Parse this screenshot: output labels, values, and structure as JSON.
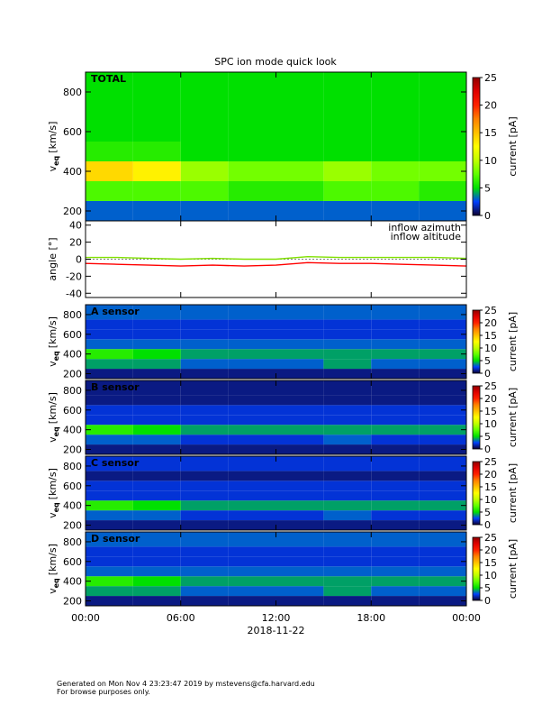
{
  "title": "SPC ion mode quick look",
  "footer": [
    "Generated on Mon Nov  4 23:23:47 2019 by mstevens@cfa.harvard.edu",
    "For browse purposes only."
  ],
  "chart_data": [
    {
      "type": "heatmap",
      "label": "TOTAL",
      "ylabel": {
        "main": "v",
        "sub": "eq",
        "unit": "[km/s]"
      },
      "xbins": [
        0,
        3,
        6,
        9,
        12,
        15,
        18,
        21,
        24
      ],
      "ybins": [
        150,
        250,
        350,
        450,
        550,
        650,
        750,
        900
      ],
      "z": [
        [
          3,
          3,
          3,
          3,
          3,
          3,
          3,
          3
        ],
        [
          7,
          7,
          7,
          6,
          6,
          7,
          7,
          6
        ],
        [
          14,
          13,
          9,
          8,
          8,
          9,
          8,
          8
        ],
        [
          6,
          6,
          5,
          5,
          5,
          5,
          5,
          5
        ],
        [
          5,
          5,
          5,
          5,
          5,
          5,
          5,
          5
        ],
        [
          5,
          5,
          5,
          5,
          5,
          5,
          5,
          5
        ],
        [
          5,
          5,
          5,
          5,
          5,
          5,
          5,
          5
        ]
      ],
      "xlim": [
        0,
        24
      ],
      "ylim": [
        150,
        900
      ],
      "yticks": [
        200,
        400,
        600,
        800
      ],
      "clim": [
        0,
        25
      ],
      "cticks": [
        0,
        5,
        10,
        15,
        20,
        25
      ],
      "clabel": "current [pA]",
      "colormap": [
        "#100030",
        "#0040ff",
        "#00e000",
        "#60ff00",
        "#c0ff00",
        "#ffff00",
        "#ffc000",
        "#ff8000",
        "#ff2000",
        "#e00000",
        "#900000"
      ]
    },
    {
      "type": "line",
      "ylabel": "angle [°]",
      "x": [
        0,
        2,
        4,
        6,
        8,
        10,
        12,
        14,
        16,
        18,
        20,
        22,
        24
      ],
      "xlim": [
        0,
        24
      ],
      "ylim": [
        -45,
        45
      ],
      "yticks": [
        -40,
        -20,
        0,
        20,
        40
      ],
      "series": [
        {
          "name": "inflow azimuth",
          "color": "#ff0000",
          "values": [
            -5,
            -6,
            -7,
            -8,
            -7,
            -8,
            -7,
            -4,
            -5,
            -5,
            -6,
            -7,
            -8
          ]
        },
        {
          "name": "inflow altitude",
          "color": "#80e000",
          "values": [
            2,
            2,
            1,
            0,
            1,
            0,
            0,
            3,
            2,
            2,
            2,
            2,
            1
          ]
        }
      ]
    },
    {
      "type": "heatmap",
      "label": "A sensor",
      "ylabel": {
        "main": "v",
        "sub": "eq",
        "unit": "[km/s]"
      },
      "xbins": [
        0,
        3,
        6,
        9,
        12,
        15,
        18,
        21,
        24
      ],
      "ybins": [
        150,
        250,
        350,
        450,
        550,
        650,
        750,
        900
      ],
      "z": [
        [
          1,
          1,
          1,
          1,
          1,
          1,
          1,
          1
        ],
        [
          4,
          4,
          3,
          3,
          3,
          4,
          3,
          3
        ],
        [
          6,
          5,
          4,
          4,
          4,
          4,
          4,
          4
        ],
        [
          3,
          3,
          3,
          3,
          3,
          3,
          3,
          3
        ],
        [
          2,
          2,
          2,
          2,
          2,
          2,
          2,
          2
        ],
        [
          2,
          2,
          2,
          2,
          2,
          2,
          2,
          2
        ],
        [
          3,
          3,
          3,
          3,
          3,
          3,
          3,
          3
        ]
      ],
      "xlim": [
        0,
        24
      ],
      "ylim": [
        150,
        900
      ],
      "yticks": [
        200,
        400,
        600,
        800
      ],
      "clim": [
        0,
        25
      ],
      "cticks": [
        0,
        5,
        10,
        15,
        20,
        25
      ],
      "clabel": "current [pA]",
      "colormap": [
        "#100030",
        "#0040ff",
        "#00e000",
        "#60ff00",
        "#c0ff00",
        "#ffff00",
        "#ffc000",
        "#ff8000",
        "#ff2000",
        "#e00000",
        "#900000"
      ]
    },
    {
      "type": "heatmap",
      "label": "B sensor",
      "ylabel": {
        "main": "v",
        "sub": "eq",
        "unit": "[km/s]"
      },
      "xbins": [
        0,
        3,
        6,
        9,
        12,
        15,
        18,
        21,
        24
      ],
      "ybins": [
        150,
        250,
        350,
        450,
        550,
        650,
        750,
        900
      ],
      "z": [
        [
          1,
          1,
          1,
          1,
          1,
          1,
          1,
          1
        ],
        [
          3,
          3,
          2,
          2,
          2,
          3,
          2,
          2
        ],
        [
          6,
          5,
          4,
          4,
          4,
          4,
          4,
          4
        ],
        [
          2,
          2,
          2,
          2,
          2,
          2,
          2,
          2
        ],
        [
          2,
          2,
          2,
          2,
          2,
          2,
          2,
          2
        ],
        [
          1,
          1,
          1,
          1,
          1,
          1,
          1,
          1
        ],
        [
          1,
          1,
          1,
          1,
          1,
          1,
          1,
          1
        ]
      ],
      "xlim": [
        0,
        24
      ],
      "ylim": [
        150,
        900
      ],
      "yticks": [
        200,
        400,
        600,
        800
      ],
      "clim": [
        0,
        25
      ],
      "cticks": [
        0,
        5,
        10,
        15,
        20,
        25
      ],
      "clabel": "current [pA]",
      "colormap": [
        "#100030",
        "#0040ff",
        "#00e000",
        "#60ff00",
        "#c0ff00",
        "#ffff00",
        "#ffc000",
        "#ff8000",
        "#ff2000",
        "#e00000",
        "#900000"
      ]
    },
    {
      "type": "heatmap",
      "label": "C sensor",
      "ylabel": {
        "main": "v",
        "sub": "eq",
        "unit": "[km/s]"
      },
      "xbins": [
        0,
        3,
        6,
        9,
        12,
        15,
        18,
        21,
        24
      ],
      "ybins": [
        150,
        250,
        350,
        450,
        550,
        650,
        750,
        900
      ],
      "z": [
        [
          1,
          1,
          1,
          1,
          1,
          1,
          1,
          1
        ],
        [
          3,
          3,
          2,
          2,
          2,
          3,
          2,
          2
        ],
        [
          6,
          5,
          4,
          4,
          4,
          4,
          4,
          4
        ],
        [
          2,
          2,
          2,
          2,
          2,
          2,
          2,
          2
        ],
        [
          2,
          2,
          2,
          2,
          2,
          2,
          2,
          2
        ],
        [
          1,
          1,
          1,
          1,
          1,
          1,
          1,
          1
        ],
        [
          2,
          2,
          2,
          2,
          2,
          2,
          2,
          2
        ]
      ],
      "xlim": [
        0,
        24
      ],
      "ylim": [
        150,
        900
      ],
      "yticks": [
        200,
        400,
        600,
        800
      ],
      "clim": [
        0,
        25
      ],
      "cticks": [
        0,
        5,
        10,
        15,
        20,
        25
      ],
      "clabel": "current [pA]",
      "colormap": [
        "#100030",
        "#0040ff",
        "#00e000",
        "#60ff00",
        "#c0ff00",
        "#ffff00",
        "#ffc000",
        "#ff8000",
        "#ff2000",
        "#e00000",
        "#900000"
      ]
    },
    {
      "type": "heatmap",
      "label": "D sensor",
      "ylabel": {
        "main": "v",
        "sub": "eq",
        "unit": "[km/s]"
      },
      "xbins": [
        0,
        3,
        6,
        9,
        12,
        15,
        18,
        21,
        24
      ],
      "ybins": [
        150,
        250,
        350,
        450,
        550,
        650,
        750,
        900
      ],
      "z": [
        [
          1,
          1,
          1,
          1,
          1,
          1,
          1,
          1
        ],
        [
          4,
          4,
          3,
          3,
          3,
          4,
          3,
          3
        ],
        [
          6,
          5,
          4,
          4,
          4,
          4,
          4,
          4
        ],
        [
          3,
          3,
          3,
          3,
          3,
          3,
          3,
          3
        ],
        [
          2,
          2,
          2,
          2,
          2,
          2,
          2,
          2
        ],
        [
          2,
          2,
          2,
          2,
          2,
          2,
          2,
          2
        ],
        [
          3,
          3,
          3,
          3,
          3,
          3,
          3,
          3
        ]
      ],
      "xlim": [
        0,
        24
      ],
      "ylim": [
        150,
        900
      ],
      "yticks": [
        200,
        400,
        600,
        800
      ],
      "clim": [
        0,
        25
      ],
      "cticks": [
        0,
        5,
        10,
        15,
        20,
        25
      ],
      "clabel": "current [pA]",
      "colormap": [
        "#100030",
        "#0040ff",
        "#00e000",
        "#60ff00",
        "#c0ff00",
        "#ffff00",
        "#ffc000",
        "#ff8000",
        "#ff2000",
        "#e00000",
        "#900000"
      ],
      "xticks": [
        {
          "value": 0,
          "label": "00:00"
        },
        {
          "value": 6,
          "label": "06:00"
        },
        {
          "value": 12,
          "label": "12:00"
        },
        {
          "value": 18,
          "label": "18:00"
        },
        {
          "value": 24,
          "label": "00:00"
        }
      ],
      "xlabel": "2018-11-22"
    }
  ]
}
